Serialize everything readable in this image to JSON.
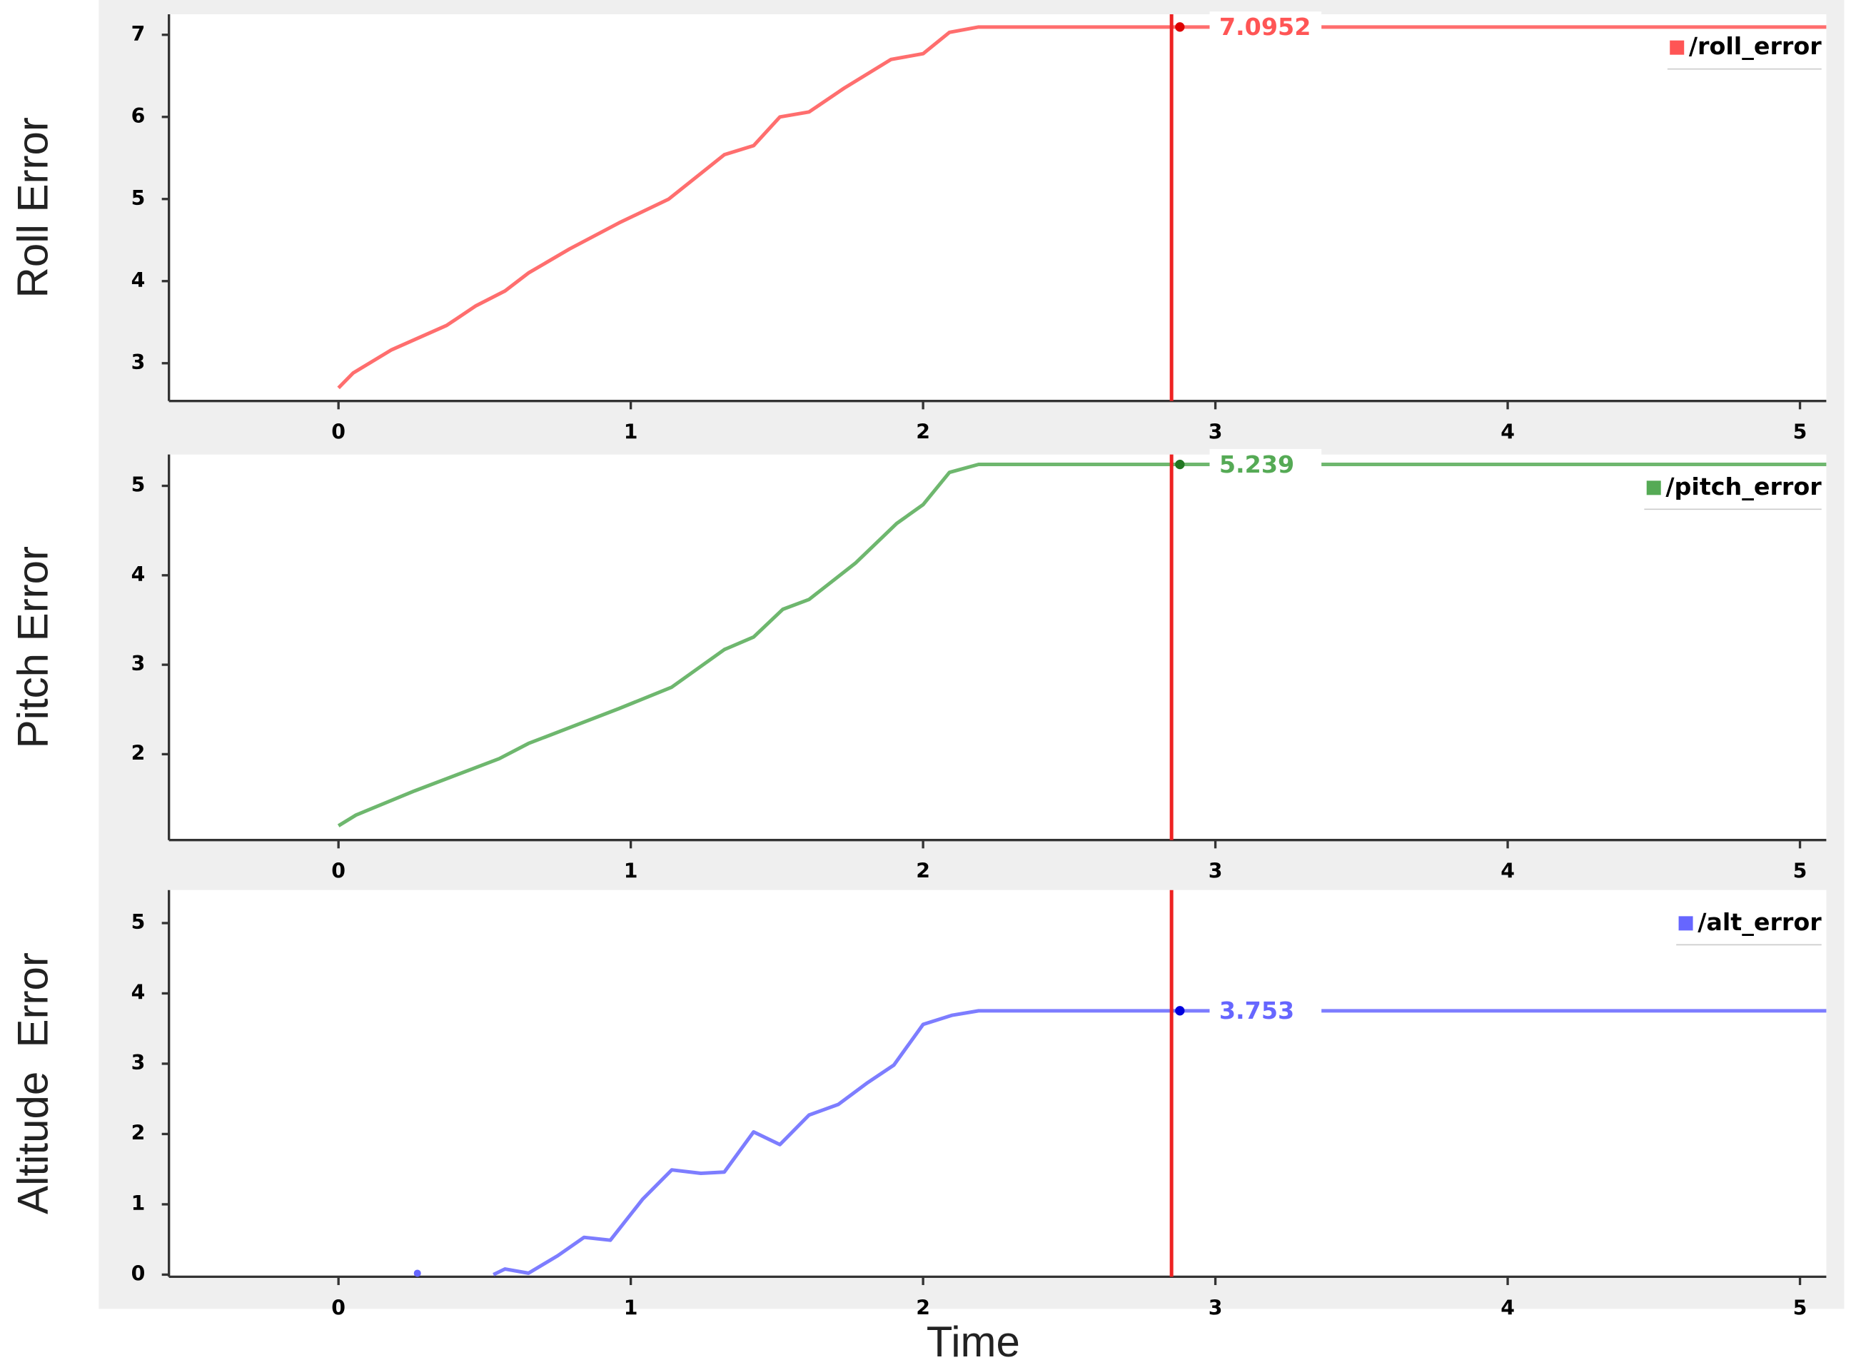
{
  "chart_data": [
    {
      "type": "line",
      "ylabel": "Roll Error",
      "x": [
        0,
        0.05,
        0.18,
        0.37,
        0.47,
        0.57,
        0.65,
        0.79,
        0.96,
        1.13,
        1.32,
        1.42,
        1.51,
        1.61,
        1.73,
        1.89,
        2.0,
        2.09,
        2.19,
        5.09
      ],
      "series": [
        {
          "name": "/roll_error",
          "color": "#ff5555",
          "values": [
            2.7,
            2.88,
            3.16,
            3.46,
            3.7,
            3.88,
            4.1,
            4.39,
            4.71,
            5.0,
            5.54,
            5.65,
            6.0,
            6.06,
            6.35,
            6.7,
            6.77,
            7.03,
            7.0952,
            7.0952
          ]
        }
      ],
      "xlim": [
        -0.58,
        5.09
      ],
      "ylim": [
        2.54,
        7.25
      ],
      "xticks": [
        0,
        1,
        2,
        3,
        4,
        5
      ],
      "yticks": [
        3,
        4,
        5,
        6,
        7
      ],
      "cursor": {
        "x": 2.85,
        "value": 7.0952
      },
      "legend": "upper right"
    },
    {
      "type": "line",
      "ylabel": "Pitch Error",
      "x": [
        0,
        0.06,
        0.26,
        0.55,
        0.65,
        0.96,
        1.14,
        1.32,
        1.42,
        1.52,
        1.61,
        1.77,
        1.91,
        2.0,
        2.09,
        2.19,
        5.09
      ],
      "series": [
        {
          "name": "/pitch_error",
          "color": "#55aa55",
          "values": [
            1.2,
            1.32,
            1.59,
            1.95,
            2.12,
            2.51,
            2.75,
            3.17,
            3.31,
            3.62,
            3.73,
            4.14,
            4.58,
            4.79,
            5.15,
            5.239,
            5.239
          ]
        }
      ],
      "xlim": [
        -0.58,
        5.09
      ],
      "ylim": [
        1.04,
        5.35
      ],
      "xticks": [
        0,
        1,
        2,
        3,
        4,
        5
      ],
      "yticks": [
        2,
        3,
        4,
        5
      ],
      "cursor": {
        "x": 2.85,
        "value": 5.239
      },
      "legend": "upper right"
    },
    {
      "type": "line",
      "ylabel": "Altitude  Error",
      "xlabel": "Time",
      "x": [
        0.27,
        0.4,
        0.53,
        0.57,
        0.65,
        0.75,
        0.84,
        0.93,
        1.04,
        1.14,
        1.24,
        1.32,
        1.42,
        1.51,
        1.61,
        1.71,
        1.81,
        1.9,
        2.0,
        2.1,
        2.19,
        5.09
      ],
      "series": [
        {
          "name": "/alt_error",
          "color": "#6666ff",
          "values": [
            0.02,
            null,
            0,
            0.08,
            0.02,
            0.27,
            0.53,
            0.49,
            1.07,
            1.49,
            1.44,
            1.46,
            2.03,
            1.85,
            2.27,
            2.42,
            2.73,
            2.98,
            3.56,
            3.69,
            3.753,
            3.753
          ]
        }
      ],
      "xlim": [
        -0.58,
        5.09
      ],
      "ylim": [
        -0.03,
        5.47
      ],
      "xticks": [
        0,
        1,
        2,
        3,
        4,
        5
      ],
      "yticks": [
        0,
        1,
        2,
        3,
        4,
        5
      ],
      "cursor": {
        "x": 2.85,
        "value": 3.753
      },
      "legend": "upper right"
    }
  ]
}
